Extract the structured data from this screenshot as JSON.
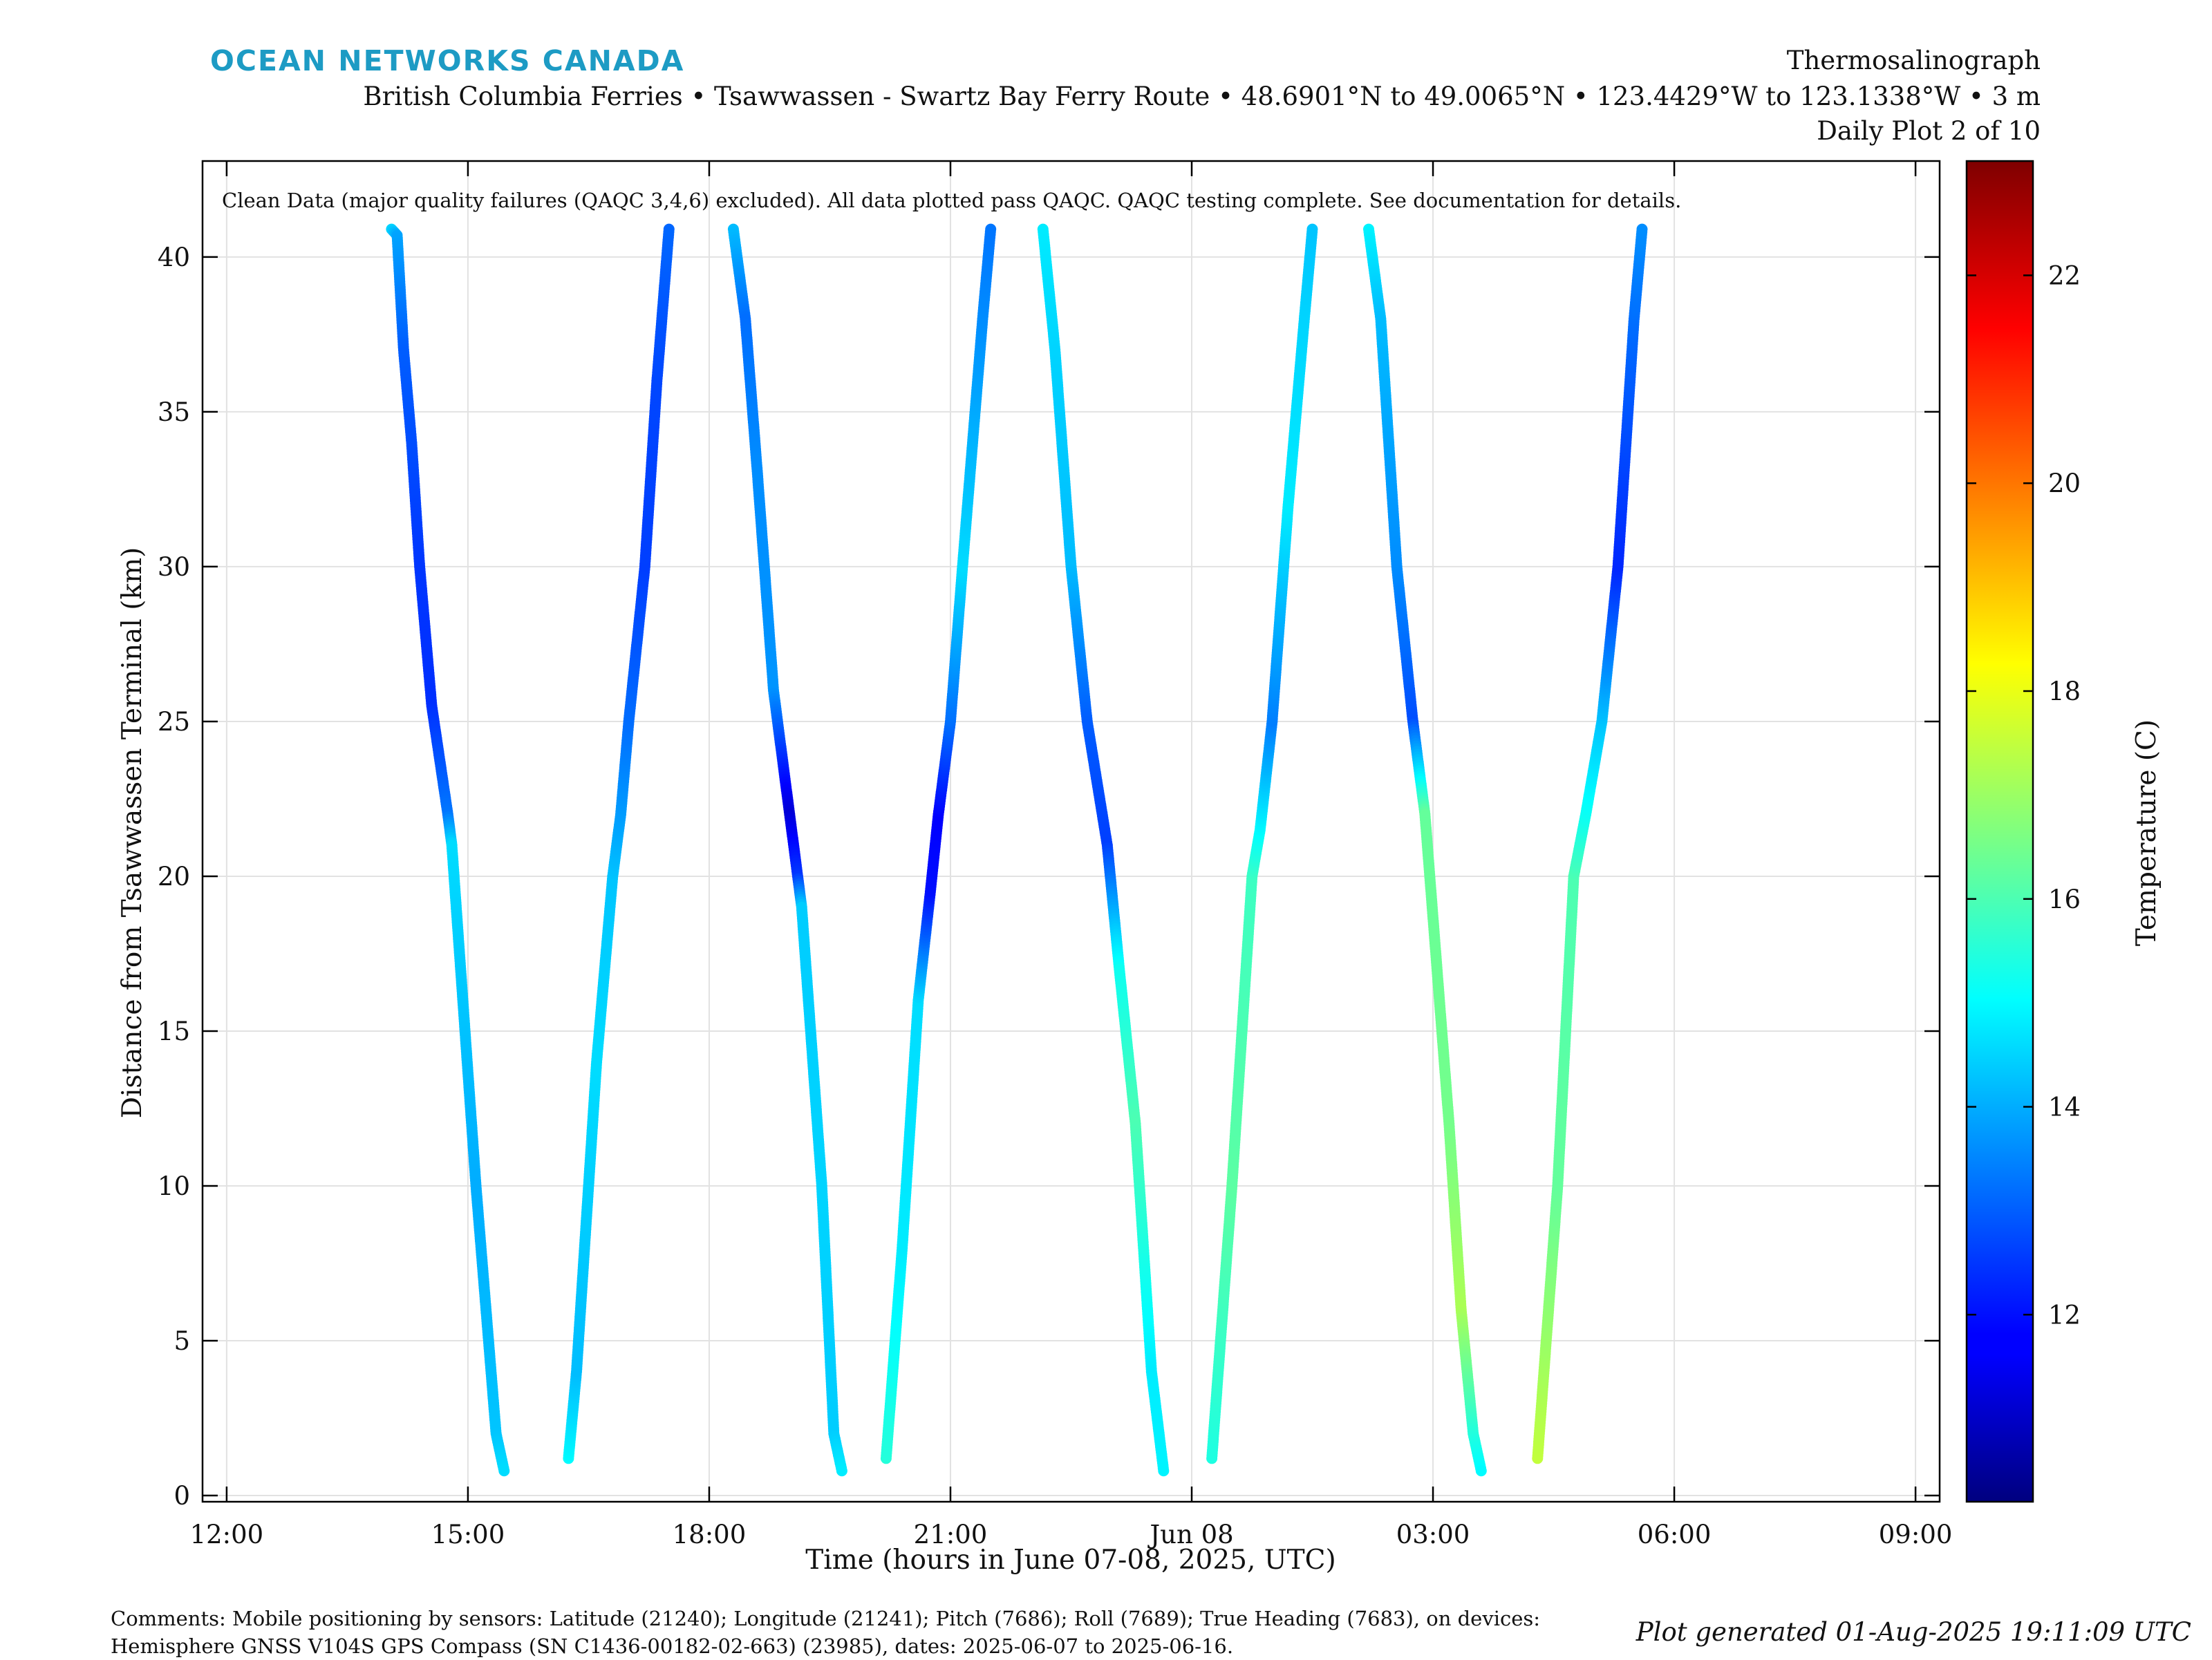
{
  "header": {
    "brand": "OCEAN NETWORKS CANADA",
    "line1": "Thermosalinograph",
    "line2": "British Columbia Ferries • Tsawwassen - Swartz Bay Ferry Route • 48.6901°N to 49.0065°N • 123.4429°W to 123.1338°W • 3 m",
    "line3": "Daily Plot 2 of 10"
  },
  "footer": {
    "comments_line1": "Comments: Mobile positioning by sensors: Latitude (21240); Longitude (21241); Pitch (7686); Roll (7689); True Heading (7683), on devices:",
    "comments_line2": "Hemisphere GNSS V104S GPS Compass (SN C1436-00182-02-663) (23985), dates: 2025-06-07 to 2025-06-16.",
    "generated": "Plot generated 01-Aug-2025 19:11:09 UTC"
  },
  "colors": {
    "brand": "#1d9bc4",
    "colormap": "jet"
  },
  "chart_data": {
    "type": "scatter",
    "note": "Clean Data (major quality failures (QAQC 3,4,6) excluded). All data plotted pass QAQC. QAQC testing complete. See documentation for details.",
    "xlabel": "Time (hours in June 07-08, 2025, UTC)",
    "ylabel": "Distance from Tsawwassen Terminal (km)",
    "xlim": [
      11.7,
      33.3
    ],
    "ylim": [
      -0.2,
      43.1
    ],
    "x_ticks": [
      12,
      15,
      18,
      21,
      24,
      27,
      30,
      33
    ],
    "x_tick_labels": [
      "12:00",
      "15:00",
      "18:00",
      "21:00",
      "Jun 08",
      "03:00",
      "06:00",
      "09:00"
    ],
    "y_ticks": [
      0,
      5,
      10,
      15,
      20,
      25,
      30,
      35,
      40
    ],
    "y_tick_labels": [
      "0",
      "5",
      "10",
      "15",
      "20",
      "25",
      "30",
      "35",
      "40"
    ],
    "grid": true,
    "colorbar": {
      "label": "Temperature (C)",
      "range": [
        10.2,
        23.1
      ],
      "ticks": [
        12,
        14,
        16,
        18,
        20,
        22
      ],
      "tick_labels": [
        "12",
        "14",
        "16",
        "18",
        "20",
        "22"
      ]
    },
    "series": [
      {
        "points": [
          [
            14.05,
            40.9,
            14.5
          ],
          [
            14.12,
            40.7,
            13.9
          ],
          [
            14.2,
            37,
            13.0
          ],
          [
            14.3,
            34,
            12.8
          ],
          [
            14.4,
            30,
            12.5
          ],
          [
            14.55,
            25.5,
            12.4
          ],
          [
            14.75,
            22,
            13.3
          ],
          [
            14.8,
            21,
            14.6
          ],
          [
            15.1,
            10,
            14.0
          ],
          [
            15.35,
            2,
            14.3
          ],
          [
            15.45,
            0.8,
            14.6
          ]
        ]
      },
      {
        "points": [
          [
            16.25,
            1.2,
            15.0
          ],
          [
            16.35,
            4,
            14.2
          ],
          [
            16.6,
            14,
            14.6
          ],
          [
            16.8,
            20,
            14.3
          ],
          [
            16.9,
            22,
            13.8
          ],
          [
            17.0,
            25,
            13.2
          ],
          [
            17.2,
            30,
            12.6
          ],
          [
            17.35,
            36,
            12.7
          ],
          [
            17.5,
            40.9,
            13.1
          ]
        ]
      },
      {
        "points": [
          [
            18.3,
            40.9,
            14.2
          ],
          [
            18.45,
            38,
            13.2
          ],
          [
            18.6,
            33,
            13.6
          ],
          [
            18.8,
            26,
            13.7
          ],
          [
            19.0,
            22,
            11.3
          ],
          [
            19.1,
            20,
            12.5
          ],
          [
            19.15,
            19,
            14.4
          ],
          [
            19.4,
            10,
            14.5
          ],
          [
            19.55,
            2,
            14.4
          ],
          [
            19.65,
            0.8,
            14.8
          ]
        ]
      },
      {
        "points": [
          [
            20.2,
            1.2,
            15.5
          ],
          [
            20.4,
            8,
            14.8
          ],
          [
            20.6,
            16,
            14.6
          ],
          [
            20.75,
            19.5,
            12.0
          ],
          [
            20.85,
            22,
            11.8
          ],
          [
            21.0,
            25,
            13.2
          ],
          [
            21.15,
            30,
            14.6
          ],
          [
            21.4,
            38,
            13.6
          ],
          [
            21.5,
            40.9,
            13.3
          ]
        ]
      },
      {
        "points": [
          [
            22.15,
            40.9,
            14.8
          ],
          [
            22.3,
            37,
            14.5
          ],
          [
            22.5,
            30,
            14.2
          ],
          [
            22.7,
            25,
            13.0
          ],
          [
            22.95,
            21,
            12.6
          ],
          [
            23.1,
            17,
            15.2
          ],
          [
            23.3,
            12,
            16.0
          ],
          [
            23.5,
            4,
            14.8
          ],
          [
            23.65,
            0.8,
            14.9
          ]
        ]
      },
      {
        "points": [
          [
            24.25,
            1.2,
            15.4
          ],
          [
            24.5,
            10,
            16.2
          ],
          [
            24.75,
            20,
            15.8
          ],
          [
            24.85,
            21.5,
            15.0
          ],
          [
            25.0,
            25,
            13.4
          ],
          [
            25.2,
            32,
            14.8
          ],
          [
            25.4,
            38,
            14.5
          ],
          [
            25.5,
            40.9,
            14.3
          ]
        ]
      },
      {
        "points": [
          [
            26.2,
            40.9,
            14.9
          ],
          [
            26.35,
            38,
            14.2
          ],
          [
            26.55,
            30,
            13.6
          ],
          [
            26.75,
            25,
            12.8
          ],
          [
            26.9,
            22,
            16.3
          ],
          [
            27.2,
            12,
            16.5
          ],
          [
            27.35,
            6,
            17.2
          ],
          [
            27.5,
            2,
            15.5
          ],
          [
            27.6,
            0.8,
            15.0
          ]
        ]
      },
      {
        "points": [
          [
            28.3,
            1.2,
            17.5
          ],
          [
            28.55,
            10,
            16.3
          ],
          [
            28.75,
            20,
            16.0
          ],
          [
            28.9,
            22,
            15.2
          ],
          [
            29.1,
            25,
            14.3
          ],
          [
            29.3,
            30,
            12.3
          ],
          [
            29.5,
            38,
            13.2
          ],
          [
            29.6,
            40.9,
            13.6
          ]
        ]
      }
    ]
  }
}
